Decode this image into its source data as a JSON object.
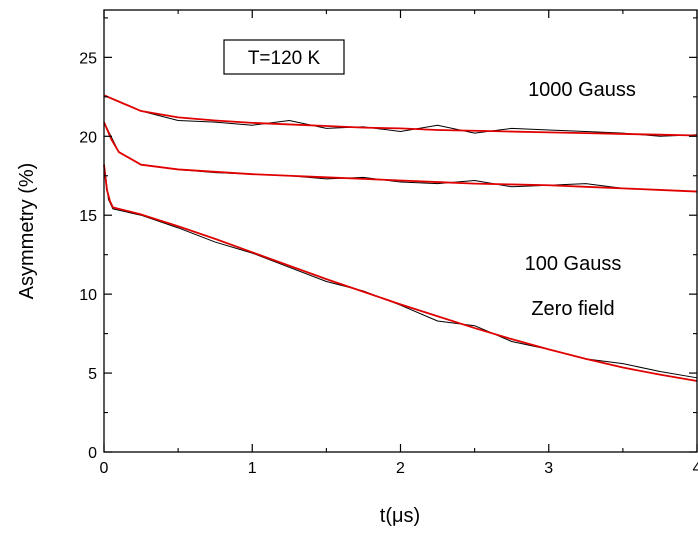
{
  "chart_data": {
    "type": "line",
    "title": "",
    "xlabel": "t(μs)",
    "ylabel": "Asymmetry (%)",
    "xlim": [
      0,
      4
    ],
    "ylim": [
      0,
      28
    ],
    "xticks": [
      0,
      1,
      2,
      3,
      4
    ],
    "xtick_labels": [
      "0",
      "1",
      "2",
      "3",
      "4"
    ],
    "yticks": [
      0,
      5,
      10,
      15,
      20,
      25
    ],
    "ytick_labels": [
      "0",
      "5",
      "10",
      "15",
      "20",
      "25"
    ],
    "grid": false,
    "legend": "none",
    "annotations": {
      "temperature": "T=120 K",
      "curve_1000": "1000 Gauss",
      "curve_100": "100 Gauss",
      "curve_zero": "Zero field"
    },
    "colors": {
      "data": "#000000",
      "fit": "#e00000"
    },
    "series": [
      {
        "kind": "data",
        "x": [
          0.0,
          0.25,
          0.5,
          0.75,
          1.0,
          1.25,
          1.5,
          1.75,
          2.0,
          2.25,
          2.5,
          2.75,
          3.0,
          3.25,
          3.5,
          3.75,
          4.0
        ],
        "values": [
          22.6,
          21.6,
          21.0,
          20.9,
          20.7,
          21.0,
          20.5,
          20.6,
          20.3,
          20.7,
          20.2,
          20.5,
          20.4,
          20.3,
          20.2,
          20.0,
          20.1
        ]
      },
      {
        "kind": "fit",
        "x": [
          0.0,
          0.25,
          0.5,
          0.75,
          1.0,
          1.25,
          1.5,
          1.75,
          2.0,
          2.25,
          2.5,
          2.75,
          3.0,
          3.25,
          3.5,
          3.75,
          4.0
        ],
        "values": [
          22.6,
          21.6,
          21.2,
          21.0,
          20.85,
          20.75,
          20.65,
          20.55,
          20.5,
          20.4,
          20.35,
          20.3,
          20.25,
          20.2,
          20.15,
          20.1,
          20.05
        ]
      },
      {
        "kind": "data",
        "x": [
          0.0,
          0.1,
          0.25,
          0.5,
          0.75,
          1.0,
          1.25,
          1.5,
          1.75,
          2.0,
          2.25,
          2.5,
          2.75,
          3.0,
          3.25,
          3.5,
          3.75,
          4.0
        ],
        "values": [
          20.9,
          19.0,
          18.2,
          17.9,
          17.7,
          17.6,
          17.5,
          17.3,
          17.4,
          17.1,
          17.0,
          17.2,
          16.8,
          16.9,
          17.0,
          16.7,
          16.6,
          16.5
        ]
      },
      {
        "kind": "fit",
        "x": [
          0.0,
          0.05,
          0.1,
          0.25,
          0.5,
          0.75,
          1.0,
          1.25,
          1.5,
          1.75,
          2.0,
          2.25,
          2.5,
          2.75,
          3.0,
          3.25,
          3.5,
          3.75,
          4.0
        ],
        "values": [
          20.9,
          19.8,
          19.0,
          18.2,
          17.9,
          17.75,
          17.6,
          17.5,
          17.4,
          17.3,
          17.2,
          17.1,
          17.0,
          16.95,
          16.9,
          16.8,
          16.7,
          16.6,
          16.5
        ]
      },
      {
        "kind": "data",
        "x": [
          0.0,
          0.03,
          0.06,
          0.25,
          0.5,
          0.75,
          1.0,
          1.25,
          1.5,
          1.75,
          2.0,
          2.25,
          2.5,
          2.75,
          3.0,
          3.25,
          3.5,
          3.75,
          4.0
        ],
        "values": [
          18.3,
          16.0,
          15.4,
          15.0,
          14.2,
          13.3,
          12.6,
          11.7,
          10.8,
          10.2,
          9.3,
          8.3,
          8.0,
          7.0,
          6.5,
          5.9,
          5.6,
          5.1,
          4.7
        ]
      },
      {
        "kind": "fit",
        "x": [
          0.0,
          0.02,
          0.04,
          0.06,
          0.25,
          0.5,
          0.75,
          1.0,
          1.25,
          1.5,
          1.75,
          2.0,
          2.25,
          2.5,
          2.75,
          3.0,
          3.25,
          3.5,
          3.75,
          4.0
        ],
        "values": [
          18.2,
          16.6,
          15.9,
          15.5,
          15.05,
          14.3,
          13.5,
          12.65,
          11.8,
          10.95,
          10.15,
          9.35,
          8.6,
          7.85,
          7.15,
          6.5,
          5.9,
          5.35,
          4.9,
          4.5
        ]
      }
    ]
  }
}
